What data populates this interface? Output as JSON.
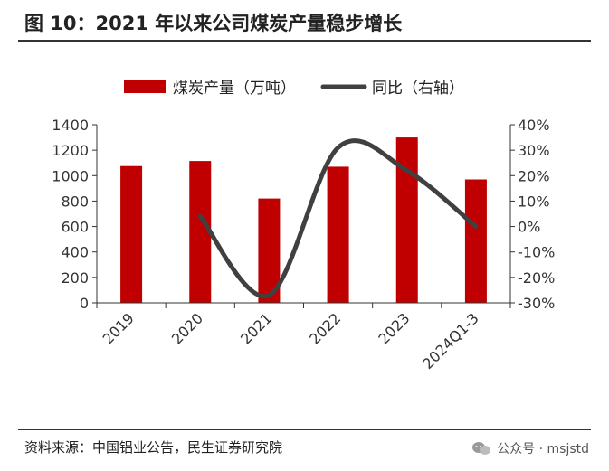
{
  "header": {
    "title": "图 10：2021 年以来公司煤炭产量稳步增长"
  },
  "footer": {
    "source": "资料来源：中国铝业公告，民生证券研究院",
    "watermark": "公众号 · msjstd"
  },
  "colors": {
    "bar": "#c00000",
    "line": "#404040",
    "axis": "#333333"
  },
  "chart_data": {
    "type": "bar",
    "categories": [
      "2019",
      "2020",
      "2021",
      "2022",
      "2023",
      "2024Q1-3"
    ],
    "series": [
      {
        "name": "煤炭产量（万吨）",
        "type": "bar",
        "axis": "left",
        "values": [
          1075,
          1115,
          820,
          1070,
          1300,
          970
        ]
      },
      {
        "name": "同比（右轴）",
        "type": "line",
        "axis": "right",
        "values": [
          null,
          4,
          -27,
          31,
          22,
          0
        ]
      }
    ],
    "left_axis": {
      "ylim": [
        0,
        1400
      ],
      "ticks": [
        "0",
        "200",
        "400",
        "600",
        "800",
        "1000",
        "1200",
        "1400"
      ]
    },
    "right_axis": {
      "ylim": [
        -30,
        40
      ],
      "ticks": [
        "-30%",
        "-20%",
        "-10%",
        "0%",
        "10%",
        "20%",
        "30%",
        "40%"
      ]
    },
    "legend_position": "top",
    "grid": false
  }
}
